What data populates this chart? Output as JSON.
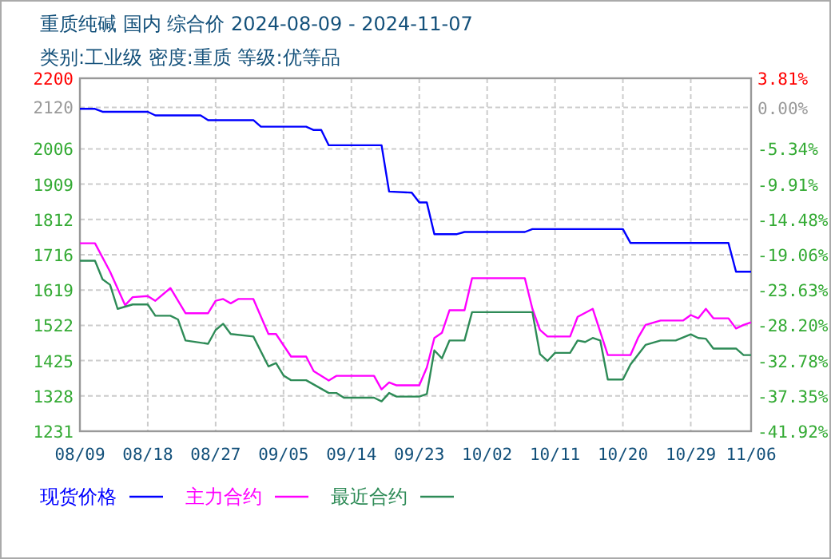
{
  "chart_data": {
    "type": "line",
    "title": "重质纯碱 国内 综合价 2024-08-09 - 2024-11-07",
    "subtitle": "类别:工业级 密度:重质 等级:优等品",
    "xlim": [
      "2024-08-09",
      "2024-11-06"
    ],
    "xticks": [
      {
        "value": "2024-08-09",
        "label": "08/09"
      },
      {
        "value": "2024-08-18",
        "label": "08/18"
      },
      {
        "value": "2024-08-27",
        "label": "08/27"
      },
      {
        "value": "2024-09-05",
        "label": "09/05"
      },
      {
        "value": "2024-09-14",
        "label": "09/14"
      },
      {
        "value": "2024-09-23",
        "label": "09/23"
      },
      {
        "value": "2024-10-02",
        "label": "10/02"
      },
      {
        "value": "2024-10-11",
        "label": "10/11"
      },
      {
        "value": "2024-10-20",
        "label": "10/20"
      },
      {
        "value": "2024-10-29",
        "label": "10/29"
      },
      {
        "value": "2024-11-06",
        "label": "11/06"
      }
    ],
    "ylim": [
      1231,
      2200
    ],
    "yticks": [
      1231,
      {
        "value": 1327.9,
        "label": "1328"
      },
      {
        "value": 1424.8,
        "label": "1425"
      },
      {
        "value": 1521.7,
        "label": "1522"
      },
      {
        "value": 1618.6,
        "label": "1619"
      },
      {
        "value": 1715.5,
        "label": "1716"
      },
      {
        "value": 1812.4,
        "label": "1812"
      },
      {
        "value": 1909.3,
        "label": "1909"
      },
      {
        "value": 2006.2,
        "label": "2006"
      },
      {
        "value": 2120,
        "label": "2120"
      },
      2200
    ],
    "y2lim": [
      -41.92,
      3.81
    ],
    "y2ticks": [
      {
        "value": -41.92,
        "label": "-41.92%"
      },
      {
        "value": -37.35,
        "label": "-37.35%"
      },
      {
        "value": -32.78,
        "label": "-32.78%"
      },
      {
        "value": -28.2,
        "label": "-28.20%"
      },
      {
        "value": -23.63,
        "label": "-23.63%"
      },
      {
        "value": -19.06,
        "label": "-19.06%"
      },
      {
        "value": -14.48,
        "label": "-14.48%"
      },
      {
        "value": -9.91,
        "label": "-9.91%"
      },
      {
        "value": -5.34,
        "label": "-5.34%"
      },
      {
        "value": 0,
        "label": "0.00%"
      },
      {
        "value": 3.81,
        "label": "3.81%"
      }
    ],
    "grid": true,
    "legend": "bottom",
    "series": [
      {
        "name": "现货价格",
        "color": "#0000ff",
        "x": [
          "2024-08-09",
          "2024-08-11",
          "2024-08-12",
          "2024-08-18",
          "2024-08-19",
          "2024-08-25",
          "2024-08-26",
          "2024-09-01",
          "2024-09-02",
          "2024-09-08",
          "2024-09-09",
          "2024-09-10",
          "2024-09-11",
          "2024-09-18",
          "2024-09-19",
          "2024-09-22",
          "2024-09-23",
          "2024-09-24",
          "2024-09-25",
          "2024-09-28",
          "2024-09-29",
          "2024-10-07",
          "2024-10-08",
          "2024-10-20",
          "2024-10-21",
          "2024-11-03",
          "2024-11-04",
          "2024-11-06"
        ],
        "values": [
          2116,
          2116,
          2108,
          2108,
          2098,
          2098,
          2085,
          2085,
          2067,
          2067,
          2058,
          2058,
          2016,
          2016,
          1889,
          1886,
          1859,
          1859,
          1772,
          1772,
          1778,
          1778,
          1786,
          1786,
          1748,
          1748,
          1669,
          1669
        ]
      },
      {
        "name": "主力合约",
        "color": "#ff00ff",
        "x": [
          "2024-08-09",
          "2024-08-11",
          "2024-08-13",
          "2024-08-15",
          "2024-08-16",
          "2024-08-18",
          "2024-08-19",
          "2024-08-21",
          "2024-08-23",
          "2024-08-26",
          "2024-08-27",
          "2024-08-28",
          "2024-08-29",
          "2024-08-30",
          "2024-09-01",
          "2024-09-03",
          "2024-09-04",
          "2024-09-06",
          "2024-09-08",
          "2024-09-09",
          "2024-09-11",
          "2024-09-12",
          "2024-09-17",
          "2024-09-18",
          "2024-09-19",
          "2024-09-20",
          "2024-09-22",
          "2024-09-23",
          "2024-09-24",
          "2024-09-25",
          "2024-09-26",
          "2024-09-27",
          "2024-09-29",
          "2024-09-30",
          "2024-10-07",
          "2024-10-08",
          "2024-10-09",
          "2024-10-10",
          "2024-10-13",
          "2024-10-14",
          "2024-10-16",
          "2024-10-18",
          "2024-10-21",
          "2024-10-22",
          "2024-10-23",
          "2024-10-25",
          "2024-10-28",
          "2024-10-29",
          "2024-10-30",
          "2024-10-31",
          "2024-11-01",
          "2024-11-03",
          "2024-11-04",
          "2024-11-05",
          "2024-11-06"
        ],
        "values": [
          1747,
          1747,
          1669,
          1577,
          1599,
          1602,
          1589,
          1624,
          1555,
          1555,
          1589,
          1594,
          1582,
          1594,
          1594,
          1498,
          1498,
          1436,
          1436,
          1396,
          1370,
          1383,
          1383,
          1346,
          1365,
          1357,
          1357,
          1357,
          1406,
          1487,
          1501,
          1563,
          1563,
          1651,
          1651,
          1567,
          1509,
          1491,
          1491,
          1545,
          1567,
          1440,
          1440,
          1487,
          1523,
          1535,
          1535,
          1550,
          1541,
          1567,
          1541,
          1541,
          1513,
          1523,
          1530
        ]
      },
      {
        "name": "最近合约",
        "color": "#2e8b57",
        "x": [
          "2024-08-09",
          "2024-08-11",
          "2024-08-12",
          "2024-08-13",
          "2024-08-14",
          "2024-08-16",
          "2024-08-18",
          "2024-08-19",
          "2024-08-21",
          "2024-08-22",
          "2024-08-23",
          "2024-08-26",
          "2024-08-27",
          "2024-08-28",
          "2024-08-29",
          "2024-09-01",
          "2024-09-03",
          "2024-09-04",
          "2024-09-05",
          "2024-09-06",
          "2024-09-08",
          "2024-09-11",
          "2024-09-12",
          "2024-09-13",
          "2024-09-17",
          "2024-09-18",
          "2024-09-19",
          "2024-09-20",
          "2024-09-22",
          "2024-09-23",
          "2024-09-24",
          "2024-09-25",
          "2024-09-26",
          "2024-09-27",
          "2024-09-29",
          "2024-09-30",
          "2024-10-08",
          "2024-10-09",
          "2024-10-10",
          "2024-10-11",
          "2024-10-13",
          "2024-10-14",
          "2024-10-15",
          "2024-10-16",
          "2024-10-17",
          "2024-10-18",
          "2024-10-20",
          "2024-10-21",
          "2024-10-23",
          "2024-10-25",
          "2024-10-27",
          "2024-10-29",
          "2024-10-30",
          "2024-10-31",
          "2024-11-01",
          "2024-11-04",
          "2024-11-05",
          "2024-11-06"
        ],
        "values": [
          1699,
          1699,
          1648,
          1633,
          1567,
          1579,
          1579,
          1548,
          1548,
          1538,
          1480,
          1471,
          1509,
          1526,
          1498,
          1491,
          1409,
          1418,
          1384,
          1371,
          1371,
          1336,
          1336,
          1323,
          1323,
          1313,
          1336,
          1326,
          1326,
          1326,
          1333,
          1453,
          1431,
          1480,
          1480,
          1558,
          1558,
          1443,
          1424,
          1446,
          1446,
          1480,
          1476,
          1487,
          1480,
          1373,
          1373,
          1414,
          1468,
          1480,
          1480,
          1497,
          1487,
          1485,
          1458,
          1458,
          1440,
          1440
        ]
      }
    ]
  }
}
